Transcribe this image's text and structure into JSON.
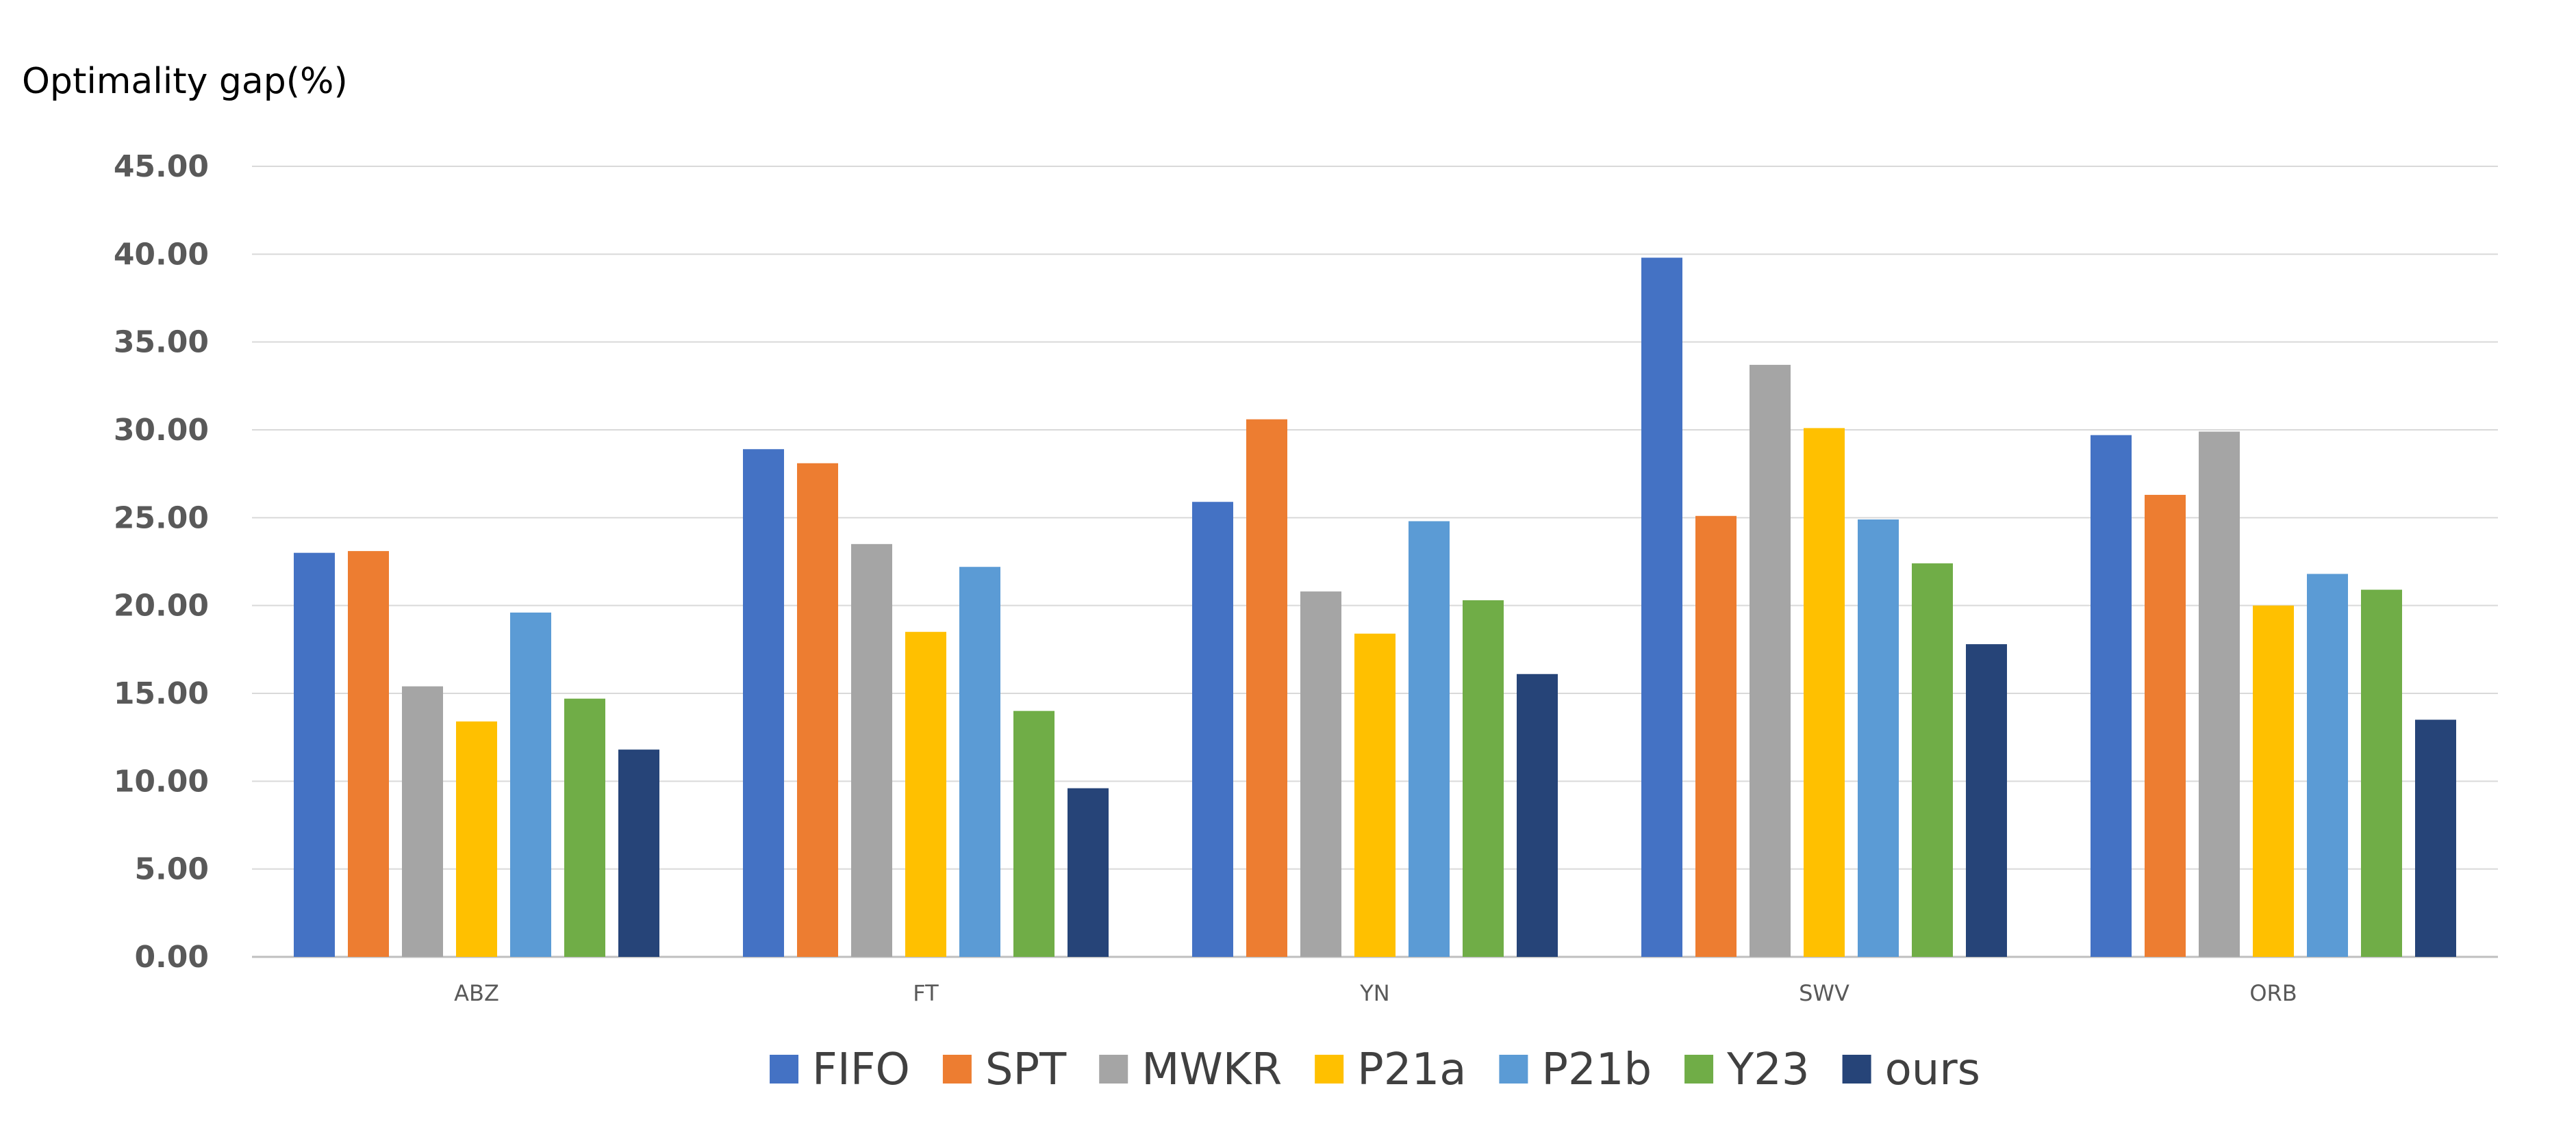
{
  "chart_data": {
    "type": "bar",
    "title": "",
    "xlabel": "",
    "ylabel": "Optimality gap(%)",
    "ylim": [
      0,
      45
    ],
    "yticks": [
      "0.00",
      "5.00",
      "10.00",
      "15.00",
      "20.00",
      "25.00",
      "30.00",
      "35.00",
      "40.00",
      "45.00"
    ],
    "grid": true,
    "legend_position": "bottom",
    "categories": [
      "ABZ",
      "FT",
      "YN",
      "SWV",
      "ORB"
    ],
    "series": [
      {
        "name": "FIFO",
        "color": "#4472C4",
        "values": [
          23.0,
          28.9,
          25.9,
          39.8,
          29.7
        ]
      },
      {
        "name": "SPT",
        "color": "#ED7D31",
        "values": [
          23.1,
          28.1,
          30.6,
          25.1,
          26.3
        ]
      },
      {
        "name": "MWKR",
        "color": "#A5A5A5",
        "values": [
          15.4,
          23.5,
          20.8,
          33.7,
          29.9
        ]
      },
      {
        "name": "P21a",
        "color": "#FFC000",
        "values": [
          13.4,
          18.5,
          18.4,
          30.1,
          20.0
        ]
      },
      {
        "name": "P21b",
        "color": "#5B9BD5",
        "values": [
          19.6,
          22.2,
          24.8,
          24.9,
          21.8
        ]
      },
      {
        "name": "Y23",
        "color": "#70AD47",
        "values": [
          14.7,
          14.0,
          20.3,
          22.4,
          20.9
        ]
      },
      {
        "name": "ours",
        "color": "#264478",
        "values": [
          11.8,
          9.6,
          16.1,
          17.8,
          13.5
        ]
      }
    ]
  }
}
